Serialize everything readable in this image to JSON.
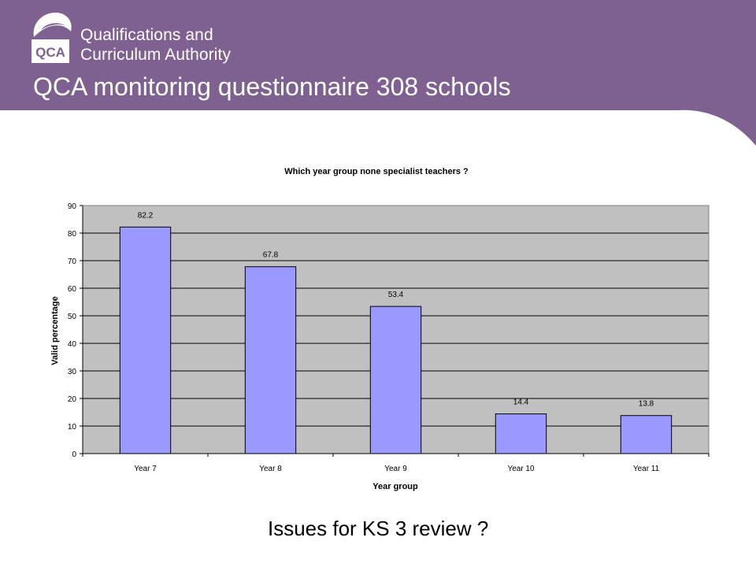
{
  "header": {
    "org_name_line1": "Qualifications and",
    "org_name_line2": "Curriculum Authority",
    "logo_text": "QCA",
    "title": "QCA monitoring questionnaire 308 schools",
    "logo_icon": "qca-logo-icon",
    "banner_color": "#7E6190"
  },
  "caption": "Issues for KS 3 review ?",
  "chart_data": {
    "type": "bar",
    "title": "Which year group none specialist teachers ?",
    "xlabel": "Year group",
    "ylabel": "Valid percentage",
    "categories": [
      "Year 7",
      "Year 8",
      "Year 9",
      "Year 10",
      "Year 11"
    ],
    "series": [
      {
        "values": [
          82.2,
          67.8,
          53.4,
          14.4,
          13.8
        ]
      }
    ],
    "ylim": [
      0,
      90
    ],
    "yticks": [
      0,
      10,
      20,
      30,
      40,
      50,
      60,
      70,
      80,
      90
    ],
    "data_labels": [
      "82.2",
      "67.8",
      "53.4",
      "14.4",
      "13.8"
    ],
    "grid": true,
    "legend": "none",
    "colors": {
      "bar": "#9999FF",
      "plot_background": "#C0C0C0"
    }
  }
}
